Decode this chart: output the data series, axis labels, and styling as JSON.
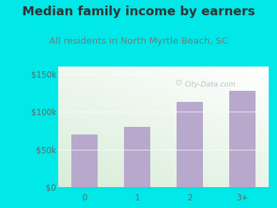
{
  "categories": [
    "0",
    "1",
    "2",
    "3+"
  ],
  "values": [
    70000,
    80000,
    113000,
    128000
  ],
  "bar_color": "#b8a8cc",
  "title": "Median family income by earners",
  "subtitle": "All residents in North Myrtle Beach, SC",
  "title_color": "#333333",
  "subtitle_color": "#777777",
  "outer_bg_color": "#00e8e8",
  "plot_bg_color_topleft": "#d8edd8",
  "plot_bg_color_bottomright": "#ffffff",
  "ytick_labels": [
    "$0",
    "$50k",
    "$100k",
    "$150k"
  ],
  "ytick_values": [
    0,
    50000,
    100000,
    150000
  ],
  "ylim": [
    0,
    160000
  ],
  "title_fontsize": 13,
  "subtitle_fontsize": 9.5,
  "tick_fontsize": 8.5,
  "watermark": "City-Data.com",
  "watermark_color": "#b0b8c0"
}
